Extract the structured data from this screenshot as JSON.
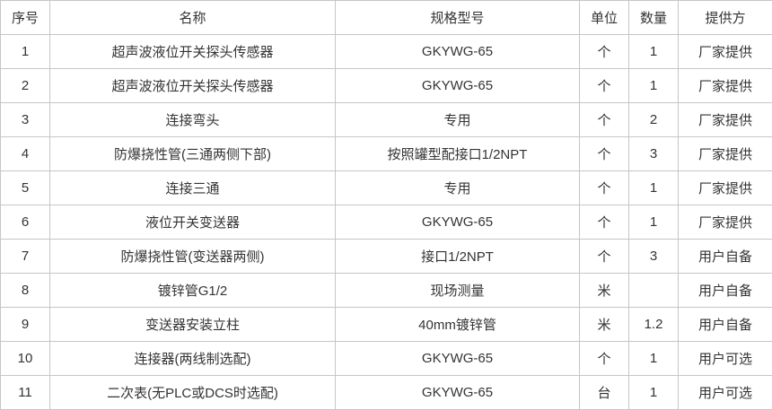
{
  "table": {
    "headers": [
      "序号",
      "名称",
      "规格型号",
      "单位",
      "数量",
      "提供方"
    ],
    "rows": [
      [
        "1",
        "超声波液位开关探头传感器",
        "GKYWG-65",
        "个",
        "1",
        "厂家提供"
      ],
      [
        "2",
        "超声波液位开关探头传感器",
        "GKYWG-65",
        "个",
        "1",
        "厂家提供"
      ],
      [
        "3",
        "连接弯头",
        "专用",
        "个",
        "2",
        "厂家提供"
      ],
      [
        "4",
        "防爆挠性管(三通两侧下部)",
        "按照罐型配接口1/2NPT",
        "个",
        "3",
        "厂家提供"
      ],
      [
        "5",
        "连接三通",
        "专用",
        "个",
        "1",
        "厂家提供"
      ],
      [
        "6",
        "液位开关变送器",
        "GKYWG-65",
        "个",
        "1",
        "厂家提供"
      ],
      [
        "7",
        "防爆挠性管(变送器两侧)",
        "接口1/2NPT",
        "个",
        "3",
        "用户自备"
      ],
      [
        "8",
        "镀锌管G1/2",
        "现场测量",
        "米",
        "",
        "用户自备"
      ],
      [
        "9",
        "变送器安装立柱",
        "40mm镀锌管",
        "米",
        "1.2",
        "用户自备"
      ],
      [
        "10",
        "连接器(两线制选配)",
        "GKYWG-65",
        "个",
        "1",
        "用户可选"
      ],
      [
        "11",
        "二次表(无PLC或DCS时选配)",
        "GKYWG-65",
        "台",
        "1",
        "用户可选"
      ]
    ]
  },
  "colors": {
    "border": "#c6c6c6",
    "text": "#333333",
    "background": "#ffffff"
  }
}
